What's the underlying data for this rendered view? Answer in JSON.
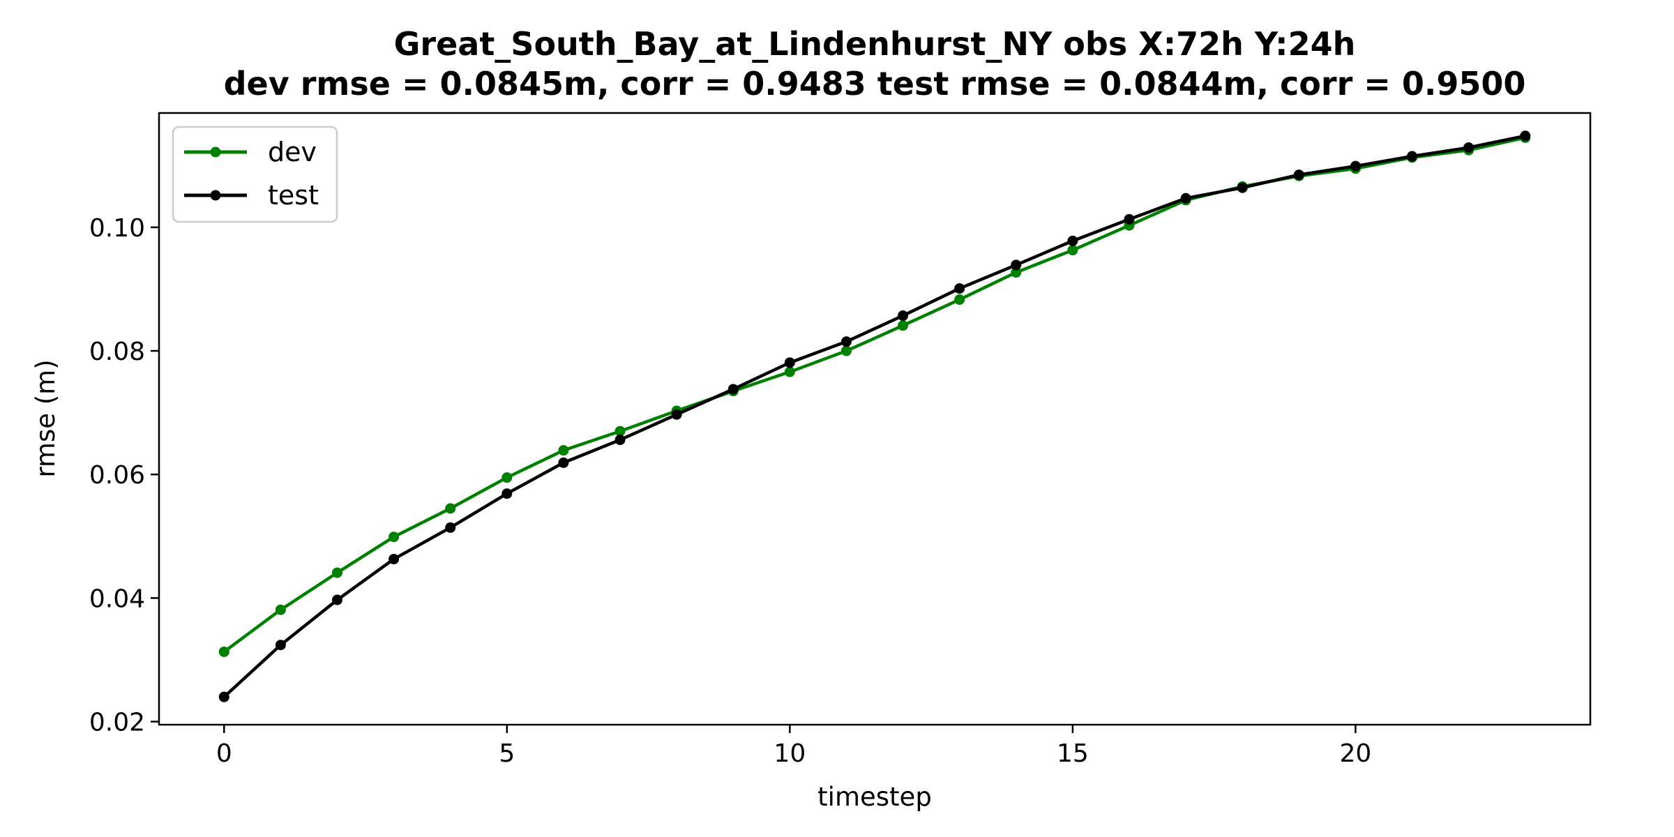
{
  "chart_data": {
    "type": "line",
    "title": "Great_South_Bay_at_Lindenhurst_NY   obs   X:72h   Y:24h",
    "subtitle": "dev rmse = 0.0845m, corr = 0.9483   test rmse = 0.0844m, corr = 0.9500",
    "xlabel": "timestep",
    "ylabel": "rmse (m)",
    "xlim": [
      -1.15,
      24.15
    ],
    "ylim": [
      0.0195,
      0.1185
    ],
    "xticks": [
      0,
      5,
      10,
      15,
      20
    ],
    "xtick_labels": [
      "0",
      "5",
      "10",
      "15",
      "20"
    ],
    "yticks": [
      0.02,
      0.04,
      0.06,
      0.08,
      0.1
    ],
    "ytick_labels": [
      "0.02",
      "0.04",
      "0.06",
      "0.08",
      "0.10"
    ],
    "grid": false,
    "legend_position": "top-left",
    "x": [
      0,
      1,
      2,
      3,
      4,
      5,
      6,
      7,
      8,
      9,
      10,
      11,
      12,
      13,
      14,
      15,
      16,
      17,
      18,
      19,
      20,
      21,
      22,
      23
    ],
    "series": [
      {
        "name": "dev",
        "color": "#008000",
        "marker": "circle",
        "values": [
          0.0313,
          0.0381,
          0.0441,
          0.0499,
          0.0545,
          0.0595,
          0.0639,
          0.067,
          0.0703,
          0.0735,
          0.0766,
          0.08,
          0.0841,
          0.0883,
          0.0927,
          0.0963,
          0.1003,
          0.1044,
          0.1066,
          0.1083,
          0.1095,
          0.1113,
          0.1125,
          0.1145
        ]
      },
      {
        "name": "test",
        "color": "#000000",
        "marker": "circle",
        "values": [
          0.024,
          0.0324,
          0.0397,
          0.0463,
          0.0514,
          0.0569,
          0.0619,
          0.0656,
          0.0697,
          0.0738,
          0.0781,
          0.0815,
          0.0857,
          0.0901,
          0.0939,
          0.0978,
          0.1013,
          0.1047,
          0.1064,
          0.1085,
          0.1099,
          0.1115,
          0.1129,
          0.1148
        ]
      }
    ]
  }
}
